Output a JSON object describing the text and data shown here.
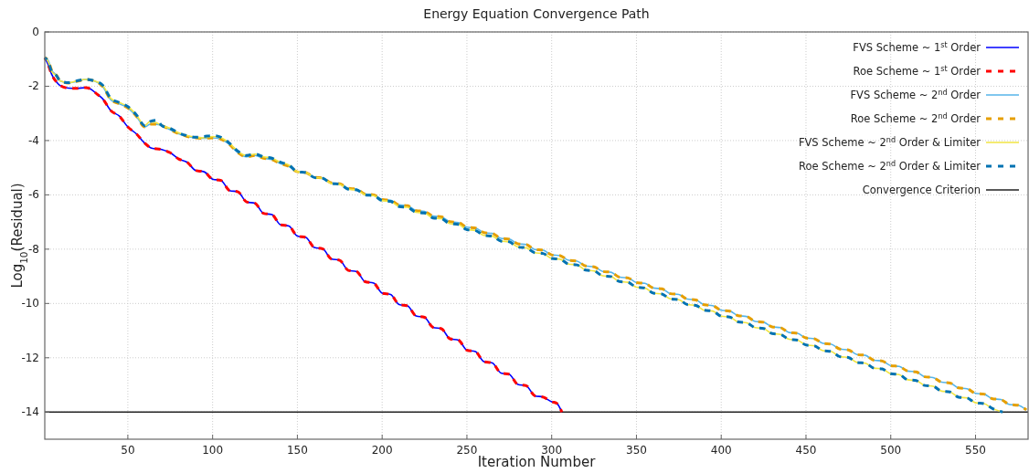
{
  "chart_data": {
    "type": "line",
    "title": "Energy Equation Convergence Path",
    "xlabel": "Iteration Number",
    "ylabel": "Log$_{10}$(Residual)",
    "xlim": [
      1,
      581
    ],
    "xticks": [
      50,
      100,
      150,
      200,
      250,
      300,
      350,
      400,
      450,
      500,
      550
    ],
    "ylim": [
      -15,
      0
    ],
    "yticks": [
      0,
      -2,
      -4,
      -6,
      -8,
      -10,
      -12,
      -14
    ],
    "grid": true,
    "legend": "top right",
    "series": [
      {
        "name": "FVS Scheme ~ 1$^{st}$ Order",
        "color": "#0000ff",
        "line_style": "solid",
        "x": [
          1,
          3,
          5,
          8,
          10,
          15,
          20,
          25,
          28,
          32,
          35,
          40,
          45,
          50,
          55,
          60,
          64,
          70,
          75,
          80,
          85,
          90,
          95,
          100,
          105,
          110,
          115,
          120,
          125,
          130,
          135,
          140,
          145,
          150,
          155,
          160,
          165,
          170,
          175,
          180,
          185,
          190,
          195,
          200,
          205,
          210,
          215,
          220,
          225,
          230,
          235,
          240,
          245,
          250,
          255,
          260,
          265,
          270,
          275,
          280,
          285,
          290,
          295,
          300,
          303,
          306
        ],
        "values": [
          -0.95,
          -1.2,
          -1.55,
          -1.85,
          -1.97,
          -2.07,
          -2.08,
          -2.05,
          -2.1,
          -2.3,
          -2.45,
          -2.9,
          -3.1,
          -3.5,
          -3.75,
          -4.1,
          -4.28,
          -4.33,
          -4.45,
          -4.68,
          -4.8,
          -5.1,
          -5.15,
          -5.42,
          -5.47,
          -5.84,
          -5.89,
          -6.26,
          -6.31,
          -6.68,
          -6.73,
          -7.1,
          -7.15,
          -7.52,
          -7.57,
          -7.94,
          -7.99,
          -8.36,
          -8.41,
          -8.78,
          -8.83,
          -9.2,
          -9.25,
          -9.62,
          -9.67,
          -10.04,
          -10.09,
          -10.46,
          -10.51,
          -10.88,
          -10.93,
          -11.3,
          -11.35,
          -11.72,
          -11.77,
          -12.14,
          -12.19,
          -12.56,
          -12.61,
          -12.98,
          -13.03,
          -13.4,
          -13.45,
          -13.62,
          -13.68,
          -14.0
        ]
      },
      {
        "name": "Roe Scheme ~ 1$^{st}$ Order",
        "color": "#ff0000",
        "line_style": "dashed",
        "x": [
          1,
          3,
          5,
          8,
          10,
          15,
          20,
          25,
          28,
          32,
          35,
          40,
          45,
          50,
          55,
          60,
          64,
          70,
          75,
          80,
          85,
          90,
          95,
          100,
          105,
          110,
          115,
          120,
          125,
          130,
          135,
          140,
          145,
          150,
          155,
          160,
          165,
          170,
          175,
          180,
          185,
          190,
          195,
          200,
          205,
          210,
          215,
          220,
          225,
          230,
          235,
          240,
          245,
          250,
          255,
          260,
          265,
          270,
          275,
          280,
          285,
          290,
          295,
          300,
          303,
          306
        ],
        "values": [
          -0.95,
          -1.2,
          -1.55,
          -1.85,
          -1.97,
          -2.07,
          -2.08,
          -2.05,
          -2.1,
          -2.3,
          -2.45,
          -2.9,
          -3.1,
          -3.5,
          -3.75,
          -4.1,
          -4.28,
          -4.33,
          -4.45,
          -4.68,
          -4.8,
          -5.1,
          -5.15,
          -5.42,
          -5.47,
          -5.84,
          -5.89,
          -6.26,
          -6.31,
          -6.68,
          -6.73,
          -7.1,
          -7.15,
          -7.52,
          -7.57,
          -7.94,
          -7.99,
          -8.36,
          -8.41,
          -8.78,
          -8.83,
          -9.2,
          -9.25,
          -9.62,
          -9.67,
          -10.04,
          -10.09,
          -10.46,
          -10.51,
          -10.88,
          -10.93,
          -11.3,
          -11.35,
          -11.72,
          -11.77,
          -12.14,
          -12.19,
          -12.56,
          -12.61,
          -12.98,
          -13.03,
          -13.4,
          -13.45,
          -13.62,
          -13.68,
          -14.0
        ]
      },
      {
        "name": "FVS Scheme ~ 2$^{nd}$ Order",
        "color": "#56b4e9",
        "line_style": "solid",
        "x": [
          1,
          3,
          5,
          8,
          10,
          15,
          20,
          25,
          30,
          35,
          40,
          45,
          50,
          55,
          60,
          63,
          67,
          70,
          75,
          80,
          85,
          90,
          95,
          100,
          105,
          110,
          115,
          120,
          125,
          130,
          135,
          140,
          145,
          150,
          155,
          160,
          165,
          170,
          175,
          180,
          185,
          190,
          195,
          200,
          205,
          210,
          215,
          220,
          225,
          230,
          235,
          240,
          245,
          250,
          255,
          260,
          265,
          270,
          275,
          280,
          285,
          290,
          295,
          300,
          305,
          310,
          315,
          320,
          325,
          330,
          335,
          340,
          345,
          350,
          355,
          360,
          365,
          370,
          375,
          380,
          385,
          390,
          395,
          400,
          405,
          410,
          415,
          420,
          425,
          430,
          435,
          440,
          445,
          450,
          455,
          460,
          465,
          470,
          475,
          480,
          485,
          490,
          495,
          500,
          505,
          510,
          515,
          520,
          525,
          530,
          535,
          540,
          545,
          550,
          555,
          560,
          565,
          570,
          575,
          580
        ],
        "values": [
          -0.95,
          -1.05,
          -1.4,
          -1.6,
          -1.8,
          -1.88,
          -1.82,
          -1.75,
          -1.8,
          -2.0,
          -2.5,
          -2.65,
          -2.8,
          -3.1,
          -3.5,
          -3.4,
          -3.4,
          -3.45,
          -3.6,
          -3.75,
          -3.85,
          -3.9,
          -3.92,
          -3.9,
          -3.95,
          -4.15,
          -4.45,
          -4.6,
          -4.55,
          -4.65,
          -4.7,
          -4.85,
          -4.95,
          -5.15,
          -5.18,
          -5.35,
          -5.38,
          -5.56,
          -5.59,
          -5.76,
          -5.79,
          -5.97,
          -6.0,
          -6.17,
          -6.2,
          -6.37,
          -6.4,
          -6.58,
          -6.61,
          -6.78,
          -6.81,
          -6.99,
          -7.02,
          -7.19,
          -7.22,
          -7.39,
          -7.42,
          -7.6,
          -7.63,
          -7.8,
          -7.83,
          -8.01,
          -8.04,
          -8.21,
          -8.24,
          -8.41,
          -8.44,
          -8.62,
          -8.65,
          -8.82,
          -8.85,
          -9.03,
          -9.06,
          -9.23,
          -9.26,
          -9.43,
          -9.46,
          -9.64,
          -9.67,
          -9.84,
          -9.87,
          -10.05,
          -10.08,
          -10.25,
          -10.28,
          -10.45,
          -10.48,
          -10.66,
          -10.69,
          -10.86,
          -10.89,
          -11.07,
          -11.1,
          -11.27,
          -11.3,
          -11.47,
          -11.5,
          -11.68,
          -11.71,
          -11.88,
          -11.91,
          -12.09,
          -12.12,
          -12.29,
          -12.32,
          -12.49,
          -12.52,
          -12.7,
          -12.73,
          -12.9,
          -12.93,
          -13.11,
          -13.14,
          -13.31,
          -13.34,
          -13.51,
          -13.54,
          -13.72,
          -13.75,
          -13.92
        ]
      },
      {
        "name": "Roe Scheme ~ 2$^{nd}$ Order",
        "color": "#e69f00",
        "line_style": "dashed",
        "x": [
          1,
          3,
          5,
          8,
          10,
          15,
          20,
          25,
          30,
          35,
          40,
          45,
          50,
          55,
          60,
          63,
          67,
          70,
          75,
          80,
          85,
          90,
          95,
          100,
          105,
          110,
          115,
          120,
          125,
          130,
          135,
          140,
          145,
          150,
          155,
          160,
          165,
          170,
          175,
          180,
          185,
          190,
          195,
          200,
          205,
          210,
          215,
          220,
          225,
          230,
          235,
          240,
          245,
          250,
          255,
          260,
          265,
          270,
          275,
          280,
          285,
          290,
          295,
          300,
          305,
          310,
          315,
          320,
          325,
          330,
          335,
          340,
          345,
          350,
          355,
          360,
          365,
          370,
          375,
          380,
          385,
          390,
          395,
          400,
          405,
          410,
          415,
          420,
          425,
          430,
          435,
          440,
          445,
          450,
          455,
          460,
          465,
          470,
          475,
          480,
          485,
          490,
          495,
          500,
          505,
          510,
          515,
          520,
          525,
          530,
          535,
          540,
          545,
          550,
          555,
          560,
          565,
          570,
          575,
          580
        ],
        "values": [
          -0.95,
          -1.05,
          -1.4,
          -1.6,
          -1.8,
          -1.88,
          -1.82,
          -1.75,
          -1.8,
          -2.0,
          -2.5,
          -2.65,
          -2.8,
          -3.1,
          -3.5,
          -3.4,
          -3.4,
          -3.45,
          -3.6,
          -3.75,
          -3.85,
          -3.9,
          -3.92,
          -3.9,
          -3.95,
          -4.15,
          -4.45,
          -4.6,
          -4.55,
          -4.65,
          -4.7,
          -4.85,
          -4.95,
          -5.15,
          -5.18,
          -5.35,
          -5.38,
          -5.56,
          -5.59,
          -5.76,
          -5.79,
          -5.97,
          -6.0,
          -6.17,
          -6.2,
          -6.37,
          -6.4,
          -6.58,
          -6.61,
          -6.78,
          -6.81,
          -6.99,
          -7.02,
          -7.19,
          -7.22,
          -7.39,
          -7.42,
          -7.6,
          -7.63,
          -7.8,
          -7.83,
          -8.01,
          -8.04,
          -8.21,
          -8.24,
          -8.41,
          -8.44,
          -8.62,
          -8.65,
          -8.82,
          -8.85,
          -9.03,
          -9.06,
          -9.23,
          -9.26,
          -9.43,
          -9.46,
          -9.64,
          -9.67,
          -9.84,
          -9.87,
          -10.05,
          -10.08,
          -10.25,
          -10.28,
          -10.45,
          -10.48,
          -10.66,
          -10.69,
          -10.86,
          -10.89,
          -11.07,
          -11.1,
          -11.27,
          -11.3,
          -11.47,
          -11.5,
          -11.68,
          -11.71,
          -11.88,
          -11.91,
          -12.09,
          -12.12,
          -12.29,
          -12.32,
          -12.49,
          -12.52,
          -12.7,
          -12.73,
          -12.9,
          -12.93,
          -13.11,
          -13.14,
          -13.31,
          -13.34,
          -13.51,
          -13.54,
          -13.72,
          -13.75,
          -13.92
        ]
      },
      {
        "name": "FVS Scheme ~ 2$^{nd}$ Order & Limiter",
        "color": "#f0e442",
        "line_style": "solid",
        "x": [
          1,
          3,
          5,
          8,
          10,
          15,
          20,
          25,
          30,
          35,
          40,
          45,
          50,
          55,
          60,
          63,
          67,
          70,
          75,
          80,
          85,
          90,
          95,
          100,
          105,
          110,
          115,
          120,
          125,
          130,
          135,
          140,
          145,
          150,
          155,
          160,
          165,
          170,
          175,
          180,
          185,
          190,
          195,
          200,
          205,
          210,
          215,
          220,
          225,
          230,
          235,
          240,
          245,
          250,
          255,
          260,
          265,
          270,
          275,
          280,
          285,
          290,
          295,
          300,
          305,
          310,
          315,
          320,
          325,
          330,
          335,
          340,
          345,
          350,
          355,
          360,
          365,
          370,
          375,
          380,
          385,
          390,
          395,
          400,
          405,
          410,
          415,
          420,
          425,
          430,
          435,
          440,
          445,
          450,
          455,
          460,
          465,
          470,
          475,
          480,
          485,
          490,
          495,
          500,
          505,
          510,
          515,
          520,
          525,
          530,
          535,
          540,
          545,
          550,
          555,
          560,
          566
        ],
        "values": [
          -0.95,
          -1.1,
          -1.45,
          -1.62,
          -1.8,
          -1.87,
          -1.8,
          -1.75,
          -1.8,
          -1.95,
          -2.45,
          -2.6,
          -2.75,
          -3.05,
          -3.45,
          -3.3,
          -3.35,
          -3.45,
          -3.55,
          -3.72,
          -3.82,
          -3.88,
          -3.9,
          -3.85,
          -3.9,
          -4.1,
          -4.4,
          -4.55,
          -4.5,
          -4.6,
          -4.65,
          -4.8,
          -4.9,
          -5.15,
          -5.18,
          -5.36,
          -5.39,
          -5.58,
          -5.61,
          -5.79,
          -5.82,
          -6.0,
          -6.03,
          -6.21,
          -6.24,
          -6.43,
          -6.46,
          -6.64,
          -6.67,
          -6.85,
          -6.88,
          -7.06,
          -7.09,
          -7.28,
          -7.31,
          -7.49,
          -7.52,
          -7.7,
          -7.73,
          -7.92,
          -7.95,
          -8.13,
          -8.16,
          -8.34,
          -8.37,
          -8.55,
          -8.58,
          -8.77,
          -8.8,
          -8.98,
          -9.01,
          -9.19,
          -9.22,
          -9.4,
          -9.43,
          -9.62,
          -9.65,
          -9.83,
          -9.86,
          -10.04,
          -10.07,
          -10.25,
          -10.28,
          -10.47,
          -10.5,
          -10.68,
          -10.71,
          -10.89,
          -10.92,
          -11.11,
          -11.14,
          -11.32,
          -11.35,
          -11.53,
          -11.56,
          -11.74,
          -11.77,
          -11.96,
          -11.99,
          -12.17,
          -12.2,
          -12.38,
          -12.41,
          -12.59,
          -12.62,
          -12.81,
          -12.84,
          -13.02,
          -13.05,
          -13.23,
          -13.26,
          -13.45,
          -13.48,
          -13.66,
          -13.69,
          -13.87,
          -14.0
        ]
      },
      {
        "name": "Roe Scheme ~ 2$^{nd}$ Order & Limiter",
        "color": "#0072b2",
        "line_style": "dashed",
        "x": [
          1,
          3,
          5,
          8,
          10,
          15,
          20,
          25,
          30,
          35,
          40,
          45,
          50,
          55,
          60,
          63,
          67,
          70,
          75,
          80,
          85,
          90,
          95,
          100,
          105,
          110,
          115,
          120,
          125,
          130,
          135,
          140,
          145,
          150,
          155,
          160,
          165,
          170,
          175,
          180,
          185,
          190,
          195,
          200,
          205,
          210,
          215,
          220,
          225,
          230,
          235,
          240,
          245,
          250,
          255,
          260,
          265,
          270,
          275,
          280,
          285,
          290,
          295,
          300,
          305,
          310,
          315,
          320,
          325,
          330,
          335,
          340,
          345,
          350,
          355,
          360,
          365,
          370,
          375,
          380,
          385,
          390,
          395,
          400,
          405,
          410,
          415,
          420,
          425,
          430,
          435,
          440,
          445,
          450,
          455,
          460,
          465,
          470,
          475,
          480,
          485,
          490,
          495,
          500,
          505,
          510,
          515,
          520,
          525,
          530,
          535,
          540,
          545,
          550,
          555,
          560,
          566
        ],
        "values": [
          -0.95,
          -1.1,
          -1.45,
          -1.62,
          -1.8,
          -1.87,
          -1.8,
          -1.75,
          -1.8,
          -1.95,
          -2.45,
          -2.6,
          -2.75,
          -3.05,
          -3.45,
          -3.3,
          -3.25,
          -3.45,
          -3.55,
          -3.72,
          -3.82,
          -3.88,
          -3.85,
          -3.82,
          -3.88,
          -4.1,
          -4.4,
          -4.55,
          -4.5,
          -4.6,
          -4.65,
          -4.8,
          -4.9,
          -5.15,
          -5.18,
          -5.36,
          -5.39,
          -5.58,
          -5.61,
          -5.79,
          -5.82,
          -6.0,
          -6.03,
          -6.21,
          -6.24,
          -6.43,
          -6.46,
          -6.64,
          -6.67,
          -6.85,
          -6.88,
          -7.06,
          -7.09,
          -7.28,
          -7.31,
          -7.49,
          -7.52,
          -7.7,
          -7.73,
          -7.92,
          -7.95,
          -8.13,
          -8.16,
          -8.34,
          -8.37,
          -8.55,
          -8.58,
          -8.77,
          -8.8,
          -8.98,
          -9.01,
          -9.19,
          -9.22,
          -9.4,
          -9.43,
          -9.62,
          -9.65,
          -9.83,
          -9.86,
          -10.04,
          -10.07,
          -10.25,
          -10.28,
          -10.47,
          -10.5,
          -10.68,
          -10.71,
          -10.89,
          -10.92,
          -11.11,
          -11.14,
          -11.32,
          -11.35,
          -11.53,
          -11.56,
          -11.74,
          -11.77,
          -11.96,
          -11.99,
          -12.17,
          -12.2,
          -12.38,
          -12.41,
          -12.59,
          -12.62,
          -12.81,
          -12.84,
          -13.02,
          -13.05,
          -13.23,
          -13.26,
          -13.45,
          -13.48,
          -13.66,
          -13.69,
          -13.87,
          -14.0
        ]
      }
    ],
    "ref_lines": [
      {
        "axis": "y",
        "value": -14,
        "label": "Convergence Criterion",
        "color": "#222222",
        "line_style": "solid"
      }
    ]
  }
}
